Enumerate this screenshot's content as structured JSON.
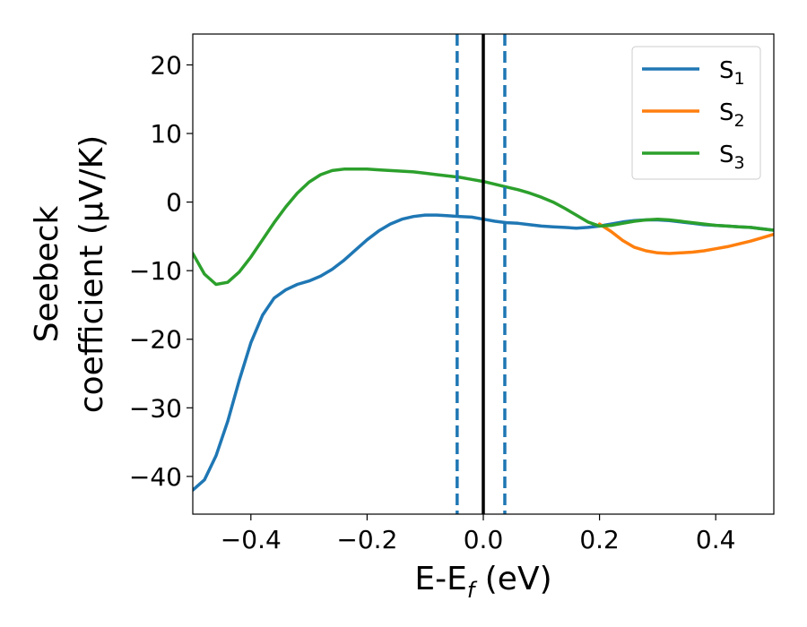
{
  "chart_data": {
    "type": "line",
    "xlabel": "E-E",
    "xlabel_sub": "f",
    "xlabel_unit": " (eV)",
    "ylabel_line1": "Seebeck",
    "ylabel_line2": "coefficient  (μV/K)",
    "xlim": [
      -0.5,
      0.5
    ],
    "ylim": [
      -45.5,
      24.5
    ],
    "xticks": [
      -0.4,
      -0.2,
      0.0,
      0.2,
      0.4
    ],
    "xtick_labels": [
      "−0.4",
      "−0.2",
      "0.0",
      "0.2",
      "0.4"
    ],
    "yticks": [
      20,
      10,
      0,
      -10,
      -20,
      -30,
      -40
    ],
    "ytick_labels": [
      "20",
      "10",
      "0",
      "−10",
      "−20",
      "−30",
      "−40"
    ],
    "grid": false,
    "legend_position": "top-right",
    "vlines": [
      {
        "x": 0.0,
        "color": "#000000",
        "style": "solid"
      },
      {
        "x": -0.045,
        "color": "#1f77b4",
        "style": "dashed"
      },
      {
        "x": 0.037,
        "color": "#1f77b4",
        "style": "dashed"
      }
    ],
    "series": [
      {
        "name": "S",
        "sub": "1",
        "color": "#1f77b4",
        "x": [
          -0.5,
          -0.48,
          -0.46,
          -0.44,
          -0.42,
          -0.4,
          -0.38,
          -0.36,
          -0.34,
          -0.32,
          -0.3,
          -0.28,
          -0.26,
          -0.24,
          -0.22,
          -0.2,
          -0.18,
          -0.16,
          -0.14,
          -0.12,
          -0.1,
          -0.08,
          -0.06,
          -0.04,
          -0.02,
          0.0,
          0.02,
          0.04,
          0.06,
          0.08,
          0.1,
          0.12,
          0.14,
          0.16,
          0.18,
          0.2,
          0.22,
          0.24,
          0.26,
          0.28,
          0.3,
          0.32,
          0.34,
          0.36,
          0.38,
          0.4,
          0.42,
          0.44,
          0.46,
          0.48,
          0.5
        ],
        "y": [
          -42.0,
          -40.5,
          -37.0,
          -32.0,
          -26.0,
          -20.5,
          -16.5,
          -14.0,
          -12.8,
          -12.0,
          -11.5,
          -10.8,
          -9.8,
          -8.5,
          -7.0,
          -5.5,
          -4.2,
          -3.2,
          -2.5,
          -2.1,
          -1.9,
          -1.9,
          -2.0,
          -2.1,
          -2.2,
          -2.5,
          -2.8,
          -3.0,
          -3.1,
          -3.3,
          -3.5,
          -3.6,
          -3.7,
          -3.8,
          -3.7,
          -3.5,
          -3.2,
          -2.9,
          -2.7,
          -2.6,
          -2.6,
          -2.7,
          -2.9,
          -3.1,
          -3.3,
          -3.4,
          -3.5,
          -3.6,
          -3.7,
          -3.9,
          -4.1
        ]
      },
      {
        "name": "S",
        "sub": "2",
        "color": "#ff7f0e",
        "x": [
          0.2,
          0.22,
          0.24,
          0.26,
          0.28,
          0.3,
          0.32,
          0.34,
          0.36,
          0.38,
          0.4,
          0.42,
          0.44,
          0.46,
          0.48,
          0.5
        ],
        "y": [
          -3.2,
          -4.3,
          -5.6,
          -6.6,
          -7.1,
          -7.4,
          -7.5,
          -7.4,
          -7.3,
          -7.1,
          -6.8,
          -6.5,
          -6.1,
          -5.7,
          -5.2,
          -4.7
        ]
      },
      {
        "name": "S",
        "sub": "3",
        "color": "#2ca02c",
        "x": [
          -0.5,
          -0.48,
          -0.46,
          -0.44,
          -0.42,
          -0.4,
          -0.38,
          -0.36,
          -0.34,
          -0.32,
          -0.3,
          -0.28,
          -0.26,
          -0.24,
          -0.22,
          -0.2,
          -0.18,
          -0.16,
          -0.14,
          -0.12,
          -0.1,
          -0.08,
          -0.06,
          -0.04,
          -0.02,
          0.0,
          0.02,
          0.04,
          0.06,
          0.08,
          0.1,
          0.12,
          0.14,
          0.16,
          0.18,
          0.2,
          0.22,
          0.24,
          0.26,
          0.28,
          0.3,
          0.32,
          0.34,
          0.36,
          0.38,
          0.4,
          0.42,
          0.44,
          0.46,
          0.48,
          0.5
        ],
        "y": [
          -7.5,
          -10.5,
          -12.0,
          -11.7,
          -10.2,
          -8.0,
          -5.5,
          -3.0,
          -0.7,
          1.3,
          2.9,
          4.0,
          4.6,
          4.8,
          4.8,
          4.8,
          4.7,
          4.6,
          4.5,
          4.4,
          4.2,
          4.0,
          3.8,
          3.6,
          3.3,
          3.0,
          2.6,
          2.2,
          1.8,
          1.3,
          0.7,
          0.0,
          -0.9,
          -1.9,
          -2.9,
          -3.5,
          -3.4,
          -3.1,
          -2.8,
          -2.6,
          -2.5,
          -2.6,
          -2.8,
          -3.0,
          -3.2,
          -3.4,
          -3.5,
          -3.6,
          -3.7,
          -3.9,
          -4.1
        ]
      }
    ]
  }
}
